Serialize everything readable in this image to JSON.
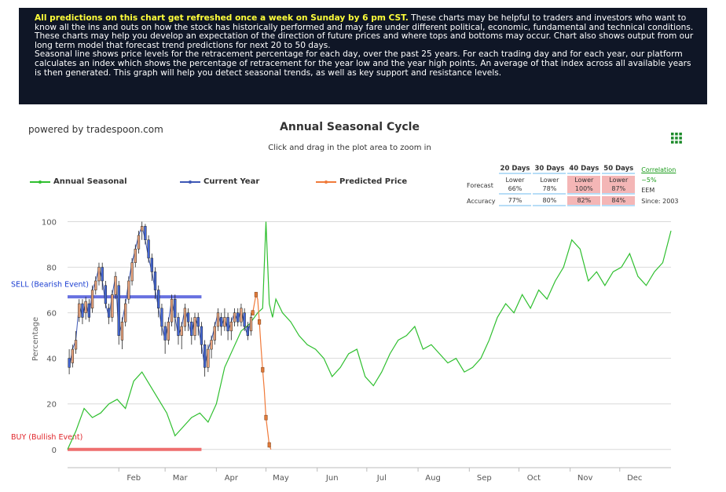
{
  "banner": {
    "highlight": "All predictions on this chart get refreshed once a week on Sunday by 6 pm CST.",
    "text1": " These charts may be helpful to traders and investors who want to know all the ins and outs on how the stock has historically performed and may fare under different political, economic, fundamental and technical conditions. These charts may help you develop an expectation of the direction of future prices and where tops and bottoms may occur. Chart also shows output from our long term model that forecast trend predictions for next 20 to 50 days.",
    "text2": "Seasonal line shows price levels for the retracement percentage for each day, over the past 25 years. For each trading day and for each year, our platform calculates an index which shows the percentage of retracement for the year low and the year high points. An average of that index across all available years is then generated. This graph will help you detect seasonal trends, as well as key support and resistance levels."
  },
  "powered": "powered by tradespoon.com",
  "stats": {
    "headers": [
      "20 Days",
      "30 Days",
      "40 Days",
      "50 Days"
    ],
    "forecast_label": "Forecast",
    "accuracy_label": "Accuracy",
    "forecast": [
      [
        "Lower",
        "66%"
      ],
      [
        "Lower",
        "78%"
      ],
      [
        "Lower",
        "100%"
      ],
      [
        "Lower",
        "87%"
      ]
    ],
    "accuracy": [
      "77%",
      "80%",
      "82%",
      "84%"
    ],
    "correlation_label": "Correlation",
    "correlation_value": "~5%",
    "symbol": "EEM",
    "since": "Since: 2003"
  },
  "colors": {
    "seasonal": "#2fbf2f",
    "current": "#3d57b5",
    "predicted": "#f07a3a",
    "sell": "#6670e0",
    "buy": "#ee6f6f",
    "sell_text": "#1c3fd1",
    "buy_text": "#e0262b"
  },
  "chart_data": {
    "type": "line",
    "title": "Annual Seasonal Cycle",
    "subtitle": "Click and drag in the plot area to zoom in",
    "ylabel": "Percentage",
    "ylim": [
      -8,
      105
    ],
    "yticks": [
      0,
      20,
      40,
      60,
      80,
      100
    ],
    "xlim": [
      0,
      365
    ],
    "month_ticks": [
      {
        "label": "Feb",
        "day": 31
      },
      {
        "label": "Mar",
        "day": 59
      },
      {
        "label": "Apr",
        "day": 90
      },
      {
        "label": "May",
        "day": 120
      },
      {
        "label": "Jun",
        "day": 151
      },
      {
        "label": "Jul",
        "day": 181
      },
      {
        "label": "Aug",
        "day": 212
      },
      {
        "label": "Sep",
        "day": 243
      },
      {
        "label": "Oct",
        "day": 273
      },
      {
        "label": "Nov",
        "day": 304
      },
      {
        "label": "Dec",
        "day": 334
      }
    ],
    "series": [
      {
        "name": "Annual Seasonal",
        "type": "line",
        "x": [
          0,
          5,
          10,
          15,
          20,
          25,
          30,
          35,
          40,
          45,
          50,
          55,
          60,
          65,
          70,
          75,
          80,
          85,
          90,
          95,
          100,
          105,
          110,
          115,
          118,
          120,
          122,
          124,
          126,
          130,
          135,
          140,
          145,
          150,
          155,
          160,
          165,
          170,
          175,
          180,
          185,
          190,
          195,
          200,
          205,
          210,
          215,
          220,
          225,
          230,
          235,
          240,
          245,
          250,
          255,
          260,
          265,
          270,
          275,
          280,
          285,
          290,
          295,
          300,
          305,
          310,
          315,
          320,
          325,
          330,
          335,
          340,
          345,
          350,
          355,
          360,
          365
        ],
        "y": [
          0,
          8,
          18,
          14,
          16,
          20,
          22,
          18,
          30,
          34,
          28,
          22,
          16,
          6,
          10,
          14,
          16,
          12,
          20,
          36,
          44,
          52,
          55,
          60,
          62,
          100,
          64,
          58,
          66,
          60,
          56,
          50,
          46,
          44,
          40,
          32,
          36,
          42,
          44,
          32,
          28,
          34,
          42,
          48,
          50,
          54,
          44,
          46,
          42,
          38,
          40,
          34,
          36,
          40,
          48,
          58,
          64,
          60,
          68,
          62,
          70,
          66,
          74,
          80,
          92,
          88,
          74,
          78,
          72,
          78,
          80,
          86,
          76,
          72,
          78,
          82,
          96
        ]
      },
      {
        "name": "Current Year",
        "type": "candles",
        "candles": [
          {
            "d": 1,
            "o": 40,
            "c": 36,
            "h": 44,
            "l": 33
          },
          {
            "d": 3,
            "o": 38,
            "c": 44,
            "h": 46,
            "l": 36
          },
          {
            "d": 5,
            "o": 44,
            "c": 48,
            "h": 52,
            "l": 42
          },
          {
            "d": 7,
            "o": 58,
            "c": 64,
            "h": 66,
            "l": 56
          },
          {
            "d": 9,
            "o": 64,
            "c": 58,
            "h": 66,
            "l": 55
          },
          {
            "d": 11,
            "o": 60,
            "c": 65,
            "h": 67,
            "l": 57
          },
          {
            "d": 13,
            "o": 64,
            "c": 58,
            "h": 66,
            "l": 56
          },
          {
            "d": 15,
            "o": 62,
            "c": 70,
            "h": 72,
            "l": 60
          },
          {
            "d": 17,
            "o": 70,
            "c": 74,
            "h": 76,
            "l": 68
          },
          {
            "d": 19,
            "o": 74,
            "c": 80,
            "h": 82,
            "l": 72
          },
          {
            "d": 21,
            "o": 80,
            "c": 74,
            "h": 82,
            "l": 70
          },
          {
            "d": 23,
            "o": 72,
            "c": 64,
            "h": 74,
            "l": 62
          },
          {
            "d": 25,
            "o": 62,
            "c": 58,
            "h": 64,
            "l": 55
          },
          {
            "d": 27,
            "o": 58,
            "c": 68,
            "h": 70,
            "l": 56
          },
          {
            "d": 29,
            "o": 68,
            "c": 76,
            "h": 78,
            "l": 66
          },
          {
            "d": 31,
            "o": 72,
            "c": 50,
            "h": 74,
            "l": 46
          },
          {
            "d": 33,
            "o": 48,
            "c": 56,
            "h": 58,
            "l": 44
          },
          {
            "d": 35,
            "o": 56,
            "c": 64,
            "h": 66,
            "l": 54
          },
          {
            "d": 37,
            "o": 66,
            "c": 74,
            "h": 76,
            "l": 64
          },
          {
            "d": 39,
            "o": 74,
            "c": 82,
            "h": 84,
            "l": 72
          },
          {
            "d": 41,
            "o": 82,
            "c": 88,
            "h": 90,
            "l": 80
          },
          {
            "d": 43,
            "o": 88,
            "c": 94,
            "h": 96,
            "l": 86
          },
          {
            "d": 45,
            "o": 96,
            "c": 98,
            "h": 100,
            "l": 92
          },
          {
            "d": 47,
            "o": 98,
            "c": 92,
            "h": 99,
            "l": 90
          },
          {
            "d": 49,
            "o": 92,
            "c": 84,
            "h": 94,
            "l": 82
          },
          {
            "d": 51,
            "o": 84,
            "c": 78,
            "h": 86,
            "l": 74
          },
          {
            "d": 53,
            "o": 78,
            "c": 70,
            "h": 80,
            "l": 66
          },
          {
            "d": 55,
            "o": 70,
            "c": 62,
            "h": 72,
            "l": 58
          },
          {
            "d": 57,
            "o": 62,
            "c": 54,
            "h": 64,
            "l": 50
          },
          {
            "d": 59,
            "o": 54,
            "c": 48,
            "h": 56,
            "l": 42
          },
          {
            "d": 61,
            "o": 48,
            "c": 56,
            "h": 58,
            "l": 46
          },
          {
            "d": 63,
            "o": 56,
            "c": 66,
            "h": 68,
            "l": 54
          },
          {
            "d": 65,
            "o": 66,
            "c": 58,
            "h": 68,
            "l": 52
          },
          {
            "d": 67,
            "o": 58,
            "c": 50,
            "h": 60,
            "l": 46
          },
          {
            "d": 69,
            "o": 50,
            "c": 54,
            "h": 56,
            "l": 44
          },
          {
            "d": 71,
            "o": 54,
            "c": 62,
            "h": 64,
            "l": 52
          },
          {
            "d": 73,
            "o": 60,
            "c": 56,
            "h": 62,
            "l": 52
          },
          {
            "d": 75,
            "o": 56,
            "c": 50,
            "h": 58,
            "l": 46
          },
          {
            "d": 77,
            "o": 50,
            "c": 58,
            "h": 60,
            "l": 48
          },
          {
            "d": 79,
            "o": 58,
            "c": 54,
            "h": 60,
            "l": 50
          },
          {
            "d": 81,
            "o": 54,
            "c": 46,
            "h": 56,
            "l": 42
          },
          {
            "d": 83,
            "o": 46,
            "c": 36,
            "h": 48,
            "l": 32
          },
          {
            "d": 85,
            "o": 36,
            "c": 44,
            "h": 46,
            "l": 34
          },
          {
            "d": 87,
            "o": 44,
            "c": 48,
            "h": 50,
            "l": 40
          },
          {
            "d": 89,
            "o": 48,
            "c": 54,
            "h": 56,
            "l": 46
          },
          {
            "d": 91,
            "o": 54,
            "c": 60,
            "h": 62,
            "l": 52
          },
          {
            "d": 93,
            "o": 58,
            "c": 54,
            "h": 60,
            "l": 50
          },
          {
            "d": 95,
            "o": 54,
            "c": 58,
            "h": 62,
            "l": 52
          },
          {
            "d": 97,
            "o": 58,
            "c": 52,
            "h": 60,
            "l": 48
          },
          {
            "d": 99,
            "o": 52,
            "c": 56,
            "h": 58,
            "l": 48
          },
          {
            "d": 101,
            "o": 56,
            "c": 60,
            "h": 62,
            "l": 54
          },
          {
            "d": 103,
            "o": 60,
            "c": 56,
            "h": 62,
            "l": 54
          },
          {
            "d": 105,
            "o": 56,
            "c": 62,
            "h": 64,
            "l": 54
          },
          {
            "d": 107,
            "o": 60,
            "c": 54,
            "h": 62,
            "l": 52
          },
          {
            "d": 109,
            "o": 54,
            "c": 50,
            "h": 56,
            "l": 48
          },
          {
            "d": 111,
            "o": 52,
            "c": 58,
            "h": 60,
            "l": 50
          }
        ]
      },
      {
        "name": "Predicted Price",
        "type": "line",
        "x": [
          112,
          113,
          114,
          115,
          116,
          117,
          118,
          119,
          120,
          121,
          122,
          123
        ],
        "y": [
          60,
          64,
          68,
          66,
          56,
          45,
          35,
          26,
          14,
          8,
          2,
          0
        ]
      }
    ],
    "bands": [
      {
        "label": "SELL (Bearish Event)",
        "y": 67,
        "x0": 0,
        "x1": 81
      },
      {
        "label": "BUY (Bullish Event)",
        "y": 0,
        "x0": 0,
        "x1": 81
      }
    ]
  }
}
